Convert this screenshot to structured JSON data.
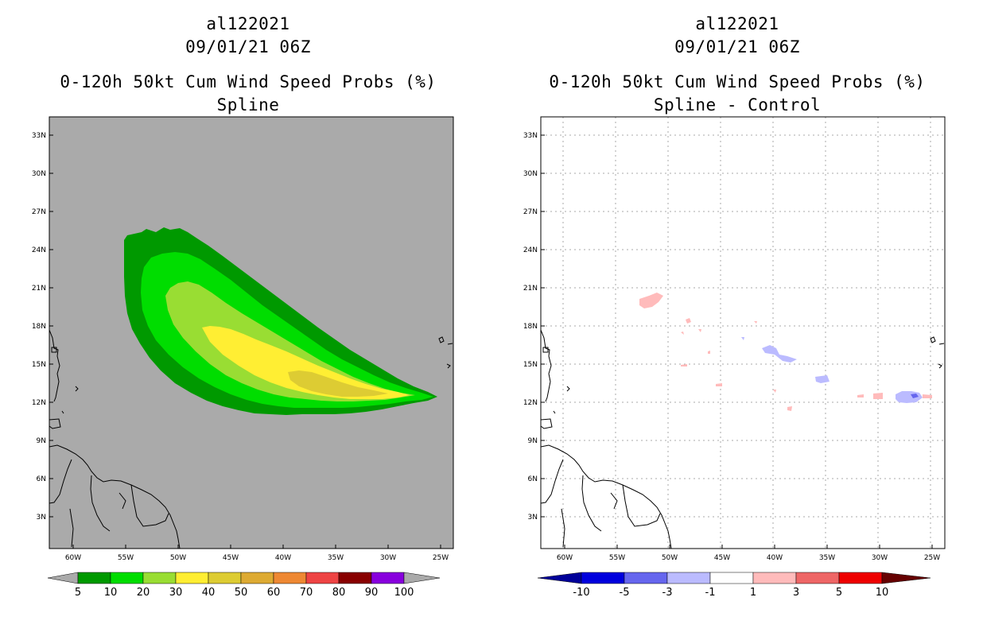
{
  "left_panel": {
    "storm_id": "al122021",
    "datetime": "09/01/21 06Z",
    "title": "0-120h 50kt Cum Wind Speed Probs (%)",
    "subtitle": "Spline",
    "colorbar": {
      "labels": [
        "5",
        "10",
        "20",
        "30",
        "40",
        "50",
        "60",
        "70",
        "80",
        "90",
        "100"
      ],
      "colors": [
        "#009900",
        "#00dd00",
        "#99dd33",
        "#ffee33",
        "#ddcc33",
        "#ddaa33",
        "#ee8833",
        "#ee4444",
        "#880000",
        "#8800dd"
      ],
      "end_color": "#aaaaaa"
    },
    "background": "#aaaaaa"
  },
  "right_panel": {
    "storm_id": "al122021",
    "datetime": "09/01/21 06Z",
    "title": "0-120h 50kt Cum Wind Speed Probs (%)",
    "subtitle": "Spline - Control",
    "colorbar": {
      "labels": [
        "-10",
        "-5",
        "-3",
        "-1",
        "1",
        "3",
        "5",
        "10"
      ],
      "colors": [
        "#0000dd",
        "#6666ee",
        "#bbbbff",
        "#ffffff",
        "#ffbbbb",
        "#ee6666",
        "#ee0000"
      ],
      "low_end_color": "#000099",
      "high_end_color": "#660000"
    },
    "background": "#ffffff"
  },
  "axes": {
    "lat_labels": [
      "33N",
      "30N",
      "27N",
      "24N",
      "21N",
      "18N",
      "15N",
      "12N",
      "9N",
      "6N",
      "3N"
    ],
    "lon_labels": [
      "60W",
      "55W",
      "50W",
      "45W",
      "40W",
      "35W",
      "30W",
      "25W"
    ]
  }
}
